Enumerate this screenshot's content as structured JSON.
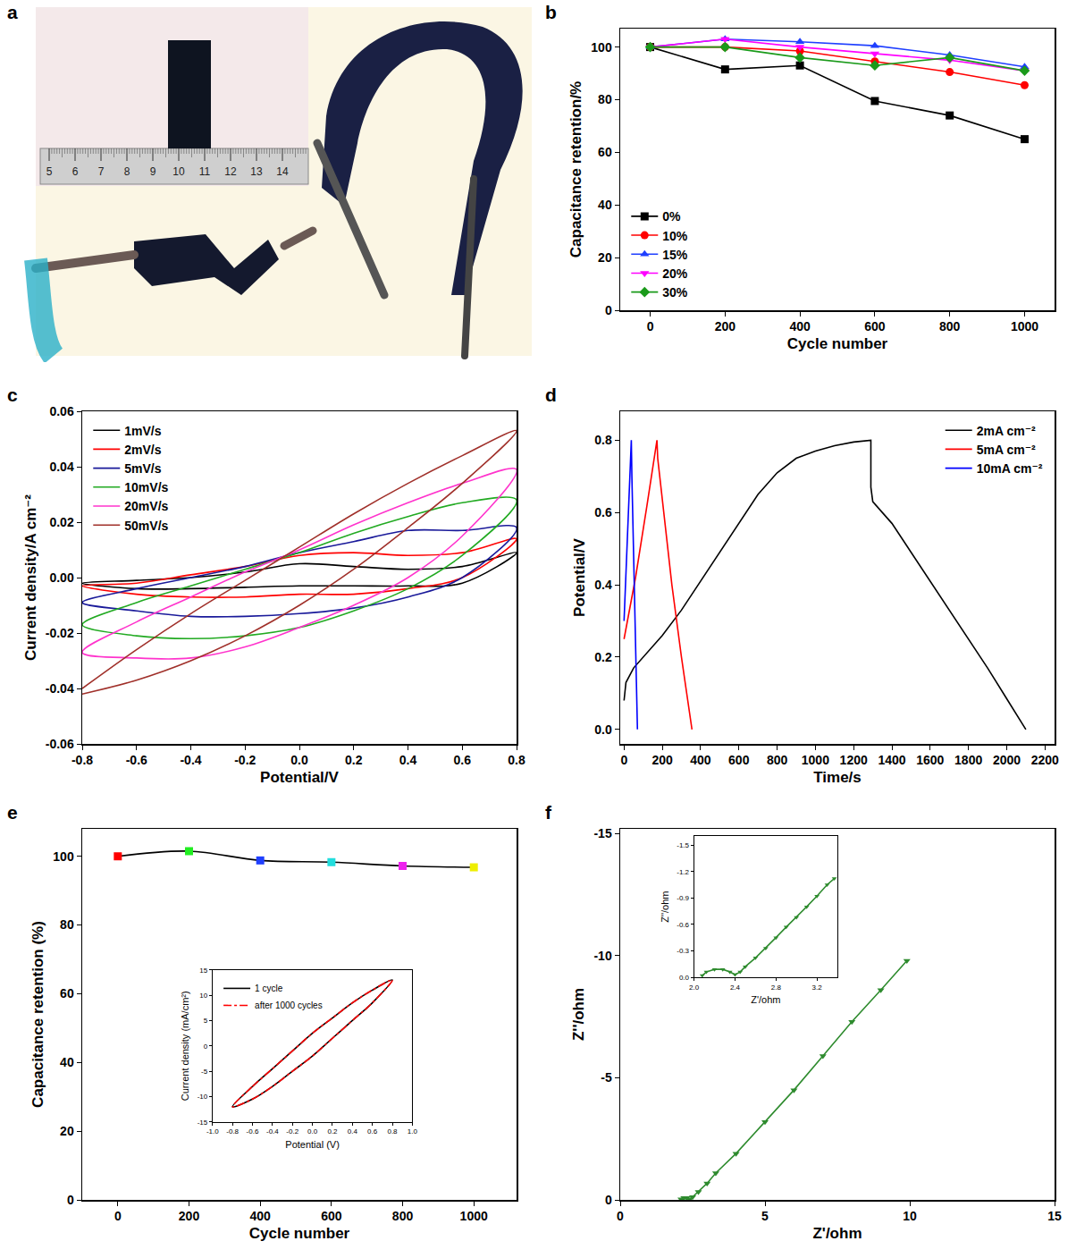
{
  "chart_data": [
    {
      "panel": "a",
      "type": "photo",
      "ruler_ticks": [
        5,
        6,
        7,
        8,
        9,
        10,
        11,
        12,
        13,
        14
      ]
    },
    {
      "panel": "b",
      "type": "line",
      "x_label": "Cycle number",
      "y_label": "Capacitance retention/%",
      "xlim": [
        -80,
        1080
      ],
      "xticks": [
        0,
        200,
        400,
        600,
        800,
        1000
      ],
      "ylim": [
        0,
        107
      ],
      "yticks": [
        0,
        20,
        40,
        60,
        80,
        100
      ],
      "grid": false,
      "legend": "lower left",
      "x": [
        0,
        200,
        400,
        600,
        800,
        1000
      ],
      "series": [
        {
          "name": "0%",
          "color": "#000000",
          "marker": "square",
          "values": [
            100,
            91.5,
            93,
            79.5,
            74,
            65
          ]
        },
        {
          "name": "10%",
          "color": "#ff0000",
          "marker": "circle",
          "values": [
            100,
            100,
            98.5,
            94.5,
            90.5,
            85.5
          ]
        },
        {
          "name": "15%",
          "color": "#1f3fff",
          "marker": "triangle-up",
          "values": [
            100,
            103,
            102,
            100.5,
            97,
            92.5
          ]
        },
        {
          "name": "20%",
          "color": "#ff00ff",
          "marker": "triangle-down",
          "values": [
            100,
            103,
            100,
            97.5,
            95,
            91
          ]
        },
        {
          "name": "30%",
          "color": "#1a9a1a",
          "marker": "diamond",
          "values": [
            100,
            100,
            96,
            93,
            96,
            91
          ]
        }
      ]
    },
    {
      "panel": "c",
      "type": "line",
      "x_label": "Potential/V",
      "y_label": "Current density/A cm⁻²",
      "xlim": [
        -0.8,
        0.8
      ],
      "xticks": [
        -0.8,
        -0.6,
        -0.4,
        -0.2,
        {
          "value": 0,
          "label": "0.0"
        },
        0.2,
        0.4,
        0.6,
        0.8
      ],
      "ylim": [
        -0.06,
        0.06
      ],
      "yticks": [
        -0.06,
        -0.04,
        -0.02,
        {
          "value": 0,
          "label": "0.00"
        },
        0.02,
        0.04,
        0.06
      ],
      "grid": false,
      "legend": "upper left",
      "x": [
        -0.8,
        -0.6,
        -0.4,
        -0.2,
        0,
        0.2,
        0.4,
        0.6,
        0.8,
        0.6,
        0.4,
        0.2,
        0,
        -0.2,
        -0.4,
        -0.6,
        -0.8
      ],
      "series": [
        {
          "name": "1mV/s",
          "color": "#000000",
          "values": [
            -0.002,
            -0.001,
            0.0,
            0.002,
            0.005,
            0.004,
            0.003,
            0.004,
            0.009,
            -0.002,
            -0.003,
            -0.003,
            -0.003,
            -0.0035,
            -0.004,
            -0.004,
            -0.002
          ]
        },
        {
          "name": "2mV/s",
          "color": "#ff0000",
          "values": [
            -0.003,
            -0.002,
            0.001,
            0.004,
            0.008,
            0.009,
            0.008,
            0.009,
            0.014,
            0.0,
            -0.004,
            -0.006,
            -0.006,
            -0.007,
            -0.007,
            -0.006,
            -0.003
          ]
        },
        {
          "name": "5mV/s",
          "color": "#1a1a9a",
          "values": [
            -0.009,
            -0.004,
            0.0,
            0.004,
            0.009,
            0.013,
            0.017,
            0.017,
            0.018,
            0.0,
            -0.007,
            -0.011,
            -0.013,
            -0.014,
            -0.014,
            -0.012,
            -0.009
          ]
        },
        {
          "name": "10mV/s",
          "color": "#22aa22",
          "values": [
            -0.017,
            -0.009,
            -0.003,
            0.003,
            0.009,
            0.016,
            0.022,
            0.027,
            0.028,
            0.008,
            -0.004,
            -0.012,
            -0.018,
            -0.021,
            -0.022,
            -0.021,
            -0.017
          ]
        },
        {
          "name": "20mV/s",
          "color": "#ff33cc",
          "values": [
            -0.027,
            -0.016,
            -0.007,
            0.002,
            0.01,
            0.019,
            0.027,
            0.034,
            0.039,
            0.015,
            0.0,
            -0.01,
            -0.018,
            -0.025,
            -0.029,
            -0.029,
            -0.027
          ]
        },
        {
          "name": "50mV/s",
          "color": "#a0302a",
          "values": [
            -0.04,
            -0.026,
            -0.013,
            -0.001,
            0.011,
            0.023,
            0.034,
            0.044,
            0.053,
            0.034,
            0.018,
            0.003,
            -0.01,
            -0.021,
            -0.03,
            -0.037,
            -0.042
          ]
        }
      ]
    },
    {
      "panel": "d",
      "type": "line",
      "x_label": "Time/s",
      "y_label": "Potential/V",
      "xlim": [
        -20,
        2250
      ],
      "xticks": [
        0,
        200,
        400,
        600,
        800,
        1000,
        1200,
        1400,
        1600,
        1800,
        2000,
        2200
      ],
      "ylim": [
        -0.04,
        0.88
      ],
      "yticks": [
        {
          "value": 0,
          "label": "0.0"
        },
        0.2,
        0.4,
        0.6,
        0.8
      ],
      "grid": false,
      "legend": "upper right",
      "series": [
        {
          "name": "2mA cm⁻²",
          "color": "#000000",
          "x": [
            0,
            10,
            50,
            100,
            200,
            300,
            400,
            500,
            600,
            700,
            800,
            900,
            1000,
            1100,
            1200,
            1290,
            1290,
            1300,
            1400,
            1500,
            1600,
            1700,
            1800,
            1900,
            2000,
            2100
          ],
          "values": [
            0.08,
            0.13,
            0.17,
            0.2,
            0.26,
            0.33,
            0.41,
            0.49,
            0.57,
            0.65,
            0.71,
            0.75,
            0.77,
            0.785,
            0.795,
            0.8,
            0.67,
            0.63,
            0.57,
            0.49,
            0.41,
            0.33,
            0.25,
            0.17,
            0.085,
            0
          ]
        },
        {
          "name": "5mA cm⁻²",
          "color": "#ff0000",
          "x": [
            0,
            60,
            120,
            172,
            176,
            250,
            300,
            355
          ],
          "values": [
            0.25,
            0.42,
            0.62,
            0.8,
            0.75,
            0.4,
            0.2,
            0
          ]
        },
        {
          "name": "10mA cm⁻²",
          "color": "#0000ff",
          "x": [
            0,
            20,
            38,
            41,
            55,
            70
          ],
          "values": [
            0.3,
            0.55,
            0.8,
            0.7,
            0.35,
            0
          ]
        }
      ]
    },
    {
      "panel": "e",
      "type": "line",
      "x_label": "Cycle number",
      "y_label": "Capacitance retention (%)",
      "xlim": [
        -100,
        1120
      ],
      "xticks": [
        0,
        200,
        400,
        600,
        800,
        1000
      ],
      "ylim": [
        0,
        108
      ],
      "yticks": [
        0,
        20,
        40,
        60,
        80,
        100
      ],
      "grid": false,
      "x": [
        0,
        200,
        400,
        600,
        800,
        1000
      ],
      "series": [
        {
          "color": "#000000",
          "marker": "square",
          "colors": [
            "#ff0000",
            "#22ee22",
            "#1f3fff",
            "#22dddd",
            "#ee22ee",
            "#eeee00"
          ],
          "values": [
            100,
            101.5,
            98.8,
            98.3,
            97.2,
            96.8
          ]
        }
      ],
      "inset": {
        "type": "line",
        "x_label": "Potential (V)",
        "y_label": "Current density (mA/cm²)",
        "xlim": [
          -1,
          1
        ],
        "xticks": [
          {
            "value": -1,
            "label": "-1.0"
          },
          -0.8,
          -0.6,
          -0.4,
          -0.2,
          {
            "value": 0,
            "label": "0.0"
          },
          0.2,
          0.4,
          0.6,
          0.8,
          {
            "value": 1,
            "label": "1.0"
          }
        ],
        "ylim": [
          -15,
          15
        ],
        "yticks": [
          -15,
          -10,
          -5,
          0,
          5,
          10,
          15
        ],
        "grid": false,
        "legend": "upper left",
        "x": [
          -0.8,
          -0.6,
          -0.4,
          -0.2,
          0,
          0.2,
          0.4,
          0.6,
          0.8,
          0.6,
          0.4,
          0.2,
          0,
          -0.2,
          -0.4,
          -0.6,
          -0.8
        ],
        "series": [
          {
            "name": "1 cycle",
            "color": "#000000",
            "line_style": "solid",
            "values": [
              -12,
              -8,
              -4.5,
              -1,
              2.5,
              5.5,
              8.5,
              11,
              13,
              8.5,
              5,
              1.5,
              -2,
              -5,
              -8,
              -10.5,
              -12
            ]
          },
          {
            "name": "after 1000 cycles",
            "color": "#ff0000",
            "line_style": "dashdot",
            "values": [
              -12,
              -8,
              -4.5,
              -1,
              2.5,
              5.5,
              8.5,
              11,
              13,
              8.5,
              5,
              1.5,
              -2,
              -5,
              -8,
              -10.5,
              -12
            ]
          }
        ]
      }
    },
    {
      "panel": "f",
      "type": "line",
      "x_label": "Z'/ohm",
      "y_label": "Z''/ohm",
      "xlim": [
        0,
        15
      ],
      "xticks": [
        0,
        5,
        10,
        15
      ],
      "ylim": [
        0,
        -15.2
      ],
      "yticks": [
        -15,
        -10,
        -5,
        0
      ],
      "grid": false,
      "series": [
        {
          "color": "#2e8b2e",
          "marker": "triangle-down",
          "x": [
            2.1,
            2.2,
            2.3,
            2.4,
            2.5,
            2.7,
            3.0,
            3.3,
            4,
            5,
            6,
            7,
            8,
            9,
            9.9
          ],
          "values": [
            -0.03,
            -0.08,
            -0.08,
            -0.03,
            -0.12,
            -0.33,
            -0.68,
            -1.1,
            -1.9,
            -3.2,
            -4.5,
            -5.9,
            -7.3,
            -8.6,
            -9.8
          ]
        }
      ],
      "inset": {
        "type": "line",
        "x_label": "Z'/ohm",
        "y_label": "Z''/ohm",
        "xlim": [
          2.0,
          3.4
        ],
        "xticks": [
          {
            "value": 2,
            "label": "2.0"
          },
          2.4,
          2.8,
          3.2
        ],
        "ylim": [
          0,
          -1.6
        ],
        "yticks": [
          {
            "value": 0,
            "label": "0.0"
          },
          -0.3,
          -0.6,
          -0.9,
          -1.2,
          -1.5
        ],
        "grid": false,
        "series": [
          {
            "color": "#2e8b2e",
            "marker": "triangle-down",
            "x": [
              2.08,
              2.12,
              2.2,
              2.28,
              2.35,
              2.4,
              2.45,
              2.5,
              2.6,
              2.7,
              2.8,
              2.9,
              3.0,
              3.1,
              3.2,
              3.3,
              3.37
            ],
            "values": [
              -0.02,
              -0.06,
              -0.09,
              -0.09,
              -0.06,
              -0.03,
              -0.06,
              -0.12,
              -0.22,
              -0.33,
              -0.45,
              -0.57,
              -0.68,
              -0.8,
              -0.92,
              -1.05,
              -1.12
            ]
          }
        ]
      }
    }
  ]
}
